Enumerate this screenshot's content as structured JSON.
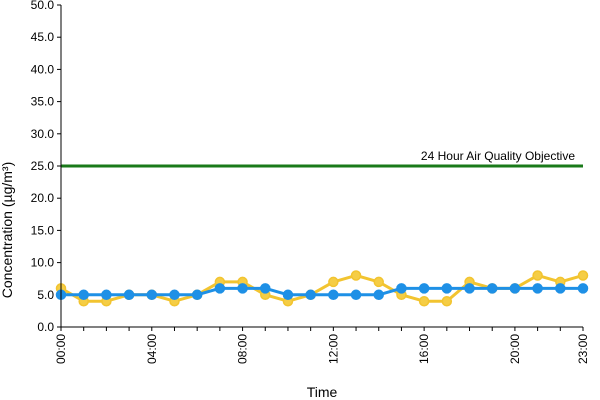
{
  "chart_data": {
    "type": "line",
    "title": "",
    "xlabel": "Time",
    "ylabel": "Concentration (µg/m³)",
    "ylim": [
      0,
      50
    ],
    "y_ticks": [
      "0.0",
      "5.0",
      "10.0",
      "15.0",
      "20.0",
      "25.0",
      "30.0",
      "35.0",
      "40.0",
      "45.0",
      "50.0"
    ],
    "x": [
      0,
      1,
      2,
      3,
      4,
      5,
      6,
      7,
      8,
      9,
      10,
      11,
      12,
      13,
      14,
      15,
      16,
      17,
      18,
      19,
      20,
      21,
      22,
      23
    ],
    "x_tick_labels": [
      "00:00",
      "04:00",
      "08:00",
      "12:00",
      "16:00",
      "20:00",
      "23:00"
    ],
    "grid": false,
    "legend": "none",
    "series": [
      {
        "color": "#f2c430",
        "marker_fill": "#f5cd45",
        "values": [
          6,
          4,
          4,
          5,
          5,
          4,
          5,
          7,
          7,
          5,
          4,
          5,
          7,
          8,
          7,
          5,
          4,
          4,
          7,
          6,
          6,
          8,
          7,
          8
        ]
      },
      {
        "color": "#1e90e6",
        "marker_fill": "#1e90e6",
        "values": [
          5,
          5,
          5,
          5,
          5,
          5,
          5,
          6,
          6,
          6,
          5,
          5,
          5,
          5,
          5,
          6,
          6,
          6,
          6,
          6,
          6,
          6,
          6,
          6
        ]
      }
    ],
    "reference_line": {
      "value": 25,
      "label": "24 Hour Air Quality Objective",
      "color": "#1a7a1a"
    }
  }
}
